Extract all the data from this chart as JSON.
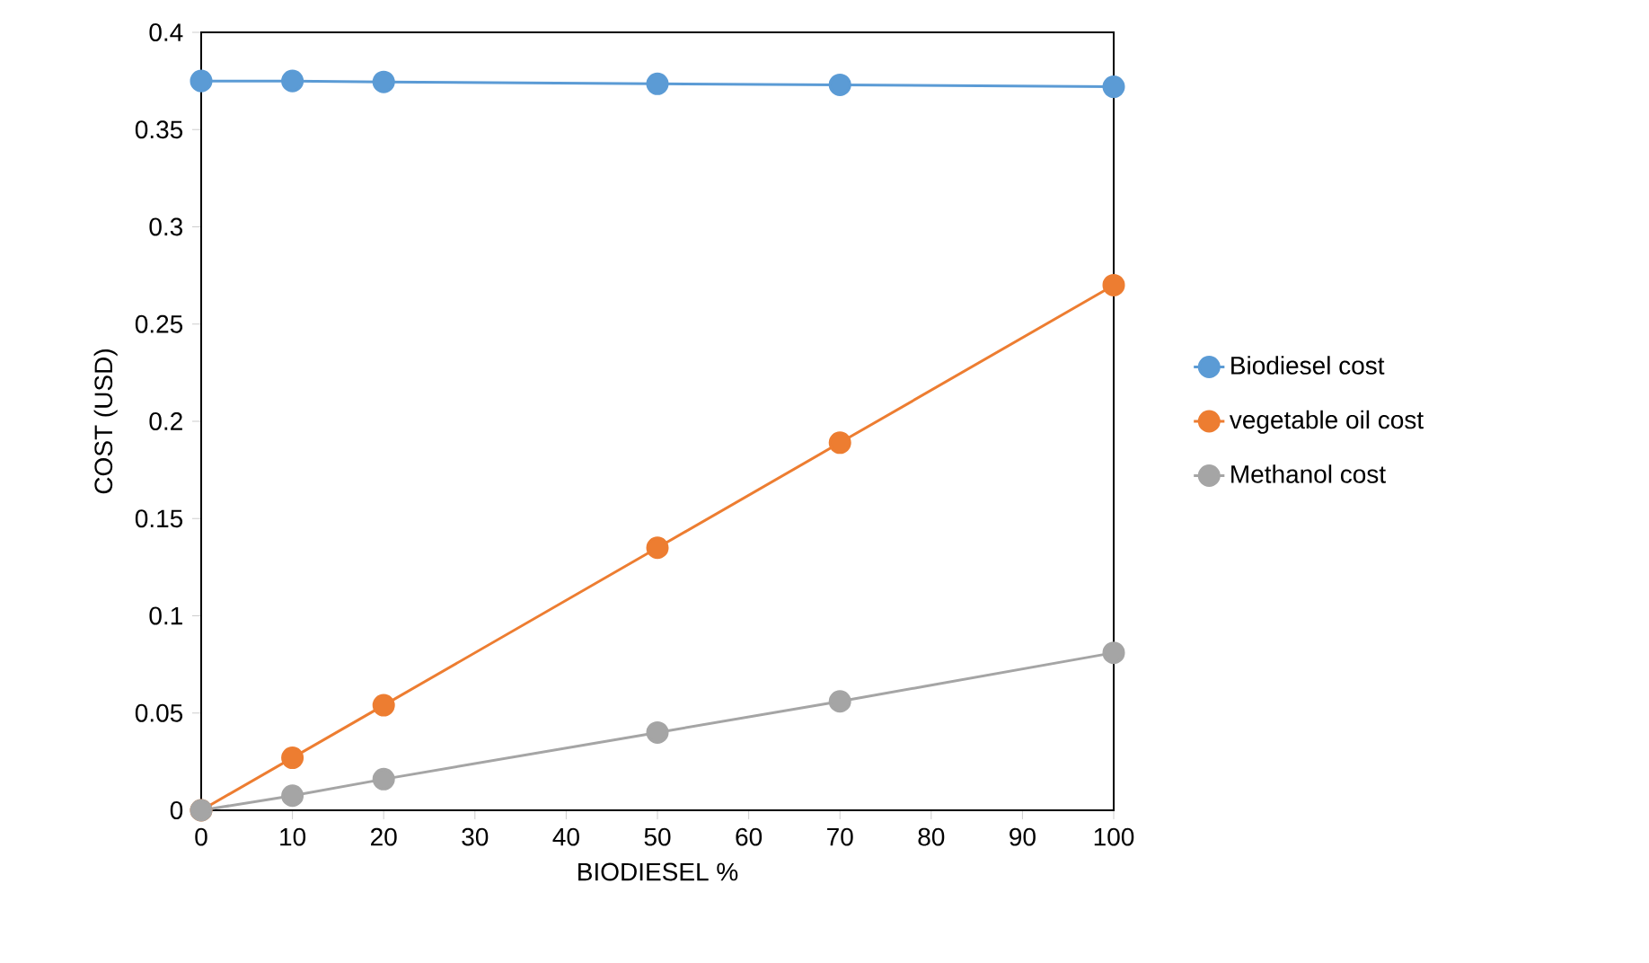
{
  "chart_data": {
    "type": "line",
    "xlabel": "BIODIESEL %",
    "ylabel": "COST (USD)",
    "x": [
      0,
      10,
      20,
      50,
      70,
      100
    ],
    "series": [
      {
        "name": "Biodiesel cost",
        "color": "#5b9bd5",
        "values": [
          0.375,
          0.375,
          0.3745,
          0.3735,
          0.373,
          0.372
        ]
      },
      {
        "name": "vegetable oil cost",
        "color": "#ed7d31",
        "values": [
          0,
          0.027,
          0.054,
          0.135,
          0.189,
          0.27
        ]
      },
      {
        "name": "Methanol cost",
        "color": "#a5a5a5",
        "values": [
          0,
          0.0075,
          0.016,
          0.04,
          0.056,
          0.081
        ]
      }
    ],
    "xlim": [
      0,
      100
    ],
    "ylim": [
      0,
      0.4
    ],
    "xticks": [
      0,
      10,
      20,
      30,
      40,
      50,
      60,
      70,
      80,
      90,
      100
    ],
    "yticks": [
      0,
      0.05,
      0.1,
      0.15,
      0.2,
      0.25,
      0.3,
      0.35,
      0.4
    ],
    "grid": false,
    "legend": "right",
    "marker": "circle",
    "line_style": "solid"
  }
}
